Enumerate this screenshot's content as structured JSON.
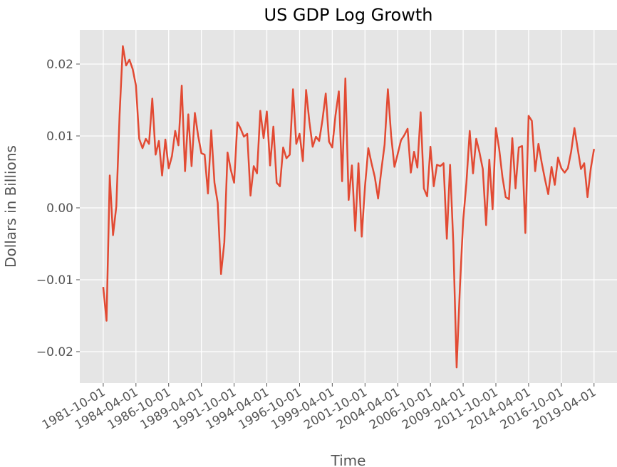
{
  "chart_data": {
    "type": "line",
    "title": "US GDP Log Growth",
    "xlabel": "Time",
    "ylabel": "Dollars in Billions",
    "x": [
      "1981-10-01",
      "1982-01-01",
      "1982-04-01",
      "1982-07-01",
      "1982-10-01",
      "1983-01-01",
      "1983-04-01",
      "1983-07-01",
      "1983-10-01",
      "1984-01-01",
      "1984-04-01",
      "1984-07-01",
      "1984-10-01",
      "1985-01-01",
      "1985-04-01",
      "1985-07-01",
      "1985-10-01",
      "1986-01-01",
      "1986-04-01",
      "1986-07-01",
      "1986-10-01",
      "1987-01-01",
      "1987-04-01",
      "1987-07-01",
      "1987-10-01",
      "1988-01-01",
      "1988-04-01",
      "1988-07-01",
      "1988-10-01",
      "1989-01-01",
      "1989-04-01",
      "1989-07-01",
      "1989-10-01",
      "1990-01-01",
      "1990-04-01",
      "1990-07-01",
      "1990-10-01",
      "1991-01-01",
      "1991-04-01",
      "1991-07-01",
      "1991-10-01",
      "1992-01-01",
      "1992-04-01",
      "1992-07-01",
      "1992-10-01",
      "1993-01-01",
      "1993-04-01",
      "1993-07-01",
      "1993-10-01",
      "1994-01-01",
      "1994-04-01",
      "1994-07-01",
      "1994-10-01",
      "1995-01-01",
      "1995-04-01",
      "1995-07-01",
      "1995-10-01",
      "1996-01-01",
      "1996-04-01",
      "1996-07-01",
      "1996-10-01",
      "1997-01-01",
      "1997-04-01",
      "1997-07-01",
      "1997-10-01",
      "1998-01-01",
      "1998-04-01",
      "1998-07-01",
      "1998-10-01",
      "1999-01-01",
      "1999-04-01",
      "1999-07-01",
      "1999-10-01",
      "2000-01-01",
      "2000-04-01",
      "2000-07-01",
      "2000-10-01",
      "2001-01-01",
      "2001-04-01",
      "2001-07-01",
      "2001-10-01",
      "2002-01-01",
      "2002-04-01",
      "2002-07-01",
      "2002-10-01",
      "2003-01-01",
      "2003-04-01",
      "2003-07-01",
      "2003-10-01",
      "2004-01-01",
      "2004-04-01",
      "2004-07-01",
      "2004-10-01",
      "2005-01-01",
      "2005-04-01",
      "2005-07-01",
      "2005-10-01",
      "2006-01-01",
      "2006-04-01",
      "2006-07-01",
      "2006-10-01",
      "2007-01-01",
      "2007-04-01",
      "2007-07-01",
      "2007-10-01",
      "2008-01-01",
      "2008-04-01",
      "2008-07-01",
      "2008-10-01",
      "2009-01-01",
      "2009-04-01",
      "2009-07-01",
      "2009-10-01",
      "2010-01-01",
      "2010-04-01",
      "2010-07-01",
      "2010-10-01",
      "2011-01-01",
      "2011-04-01",
      "2011-07-01",
      "2011-10-01",
      "2012-01-01",
      "2012-04-01",
      "2012-07-01",
      "2012-10-01",
      "2013-01-01",
      "2013-04-01",
      "2013-07-01",
      "2013-10-01",
      "2014-01-01",
      "2014-04-01",
      "2014-07-01",
      "2014-10-01",
      "2015-01-01",
      "2015-04-01",
      "2015-07-01",
      "2015-10-01",
      "2016-01-01",
      "2016-04-01",
      "2016-07-01",
      "2016-10-01",
      "2017-01-01",
      "2017-04-01",
      "2017-07-01",
      "2017-10-01",
      "2018-01-01",
      "2018-04-01",
      "2018-07-01",
      "2018-10-01",
      "2019-01-01",
      "2019-04-01"
    ],
    "series": [
      {
        "name": "GDP log growth",
        "color": "#E24A33",
        "values": [
          -0.011,
          -0.0157,
          0.0045,
          -0.0038,
          0.0002,
          0.013,
          0.0225,
          0.0198,
          0.0206,
          0.0193,
          0.017,
          0.0096,
          0.0083,
          0.0096,
          0.0089,
          0.0152,
          0.0074,
          0.0093,
          0.0045,
          0.0095,
          0.0055,
          0.0072,
          0.0107,
          0.0087,
          0.017,
          0.0051,
          0.013,
          0.0058,
          0.0132,
          0.01,
          0.0076,
          0.0074,
          0.002,
          0.0108,
          0.0035,
          0.0007,
          -0.0092,
          -0.0048,
          0.0077,
          0.0053,
          0.0035,
          0.0119,
          0.011,
          0.0099,
          0.0103,
          0.0017,
          0.0058,
          0.0048,
          0.0135,
          0.0097,
          0.0134,
          0.0059,
          0.0113,
          0.0035,
          0.003,
          0.0084,
          0.0069,
          0.0074,
          0.0165,
          0.0089,
          0.0103,
          0.0065,
          0.0164,
          0.012,
          0.0085,
          0.0099,
          0.0093,
          0.0122,
          0.0159,
          0.0092,
          0.0084,
          0.0129,
          0.0162,
          0.0037,
          0.018,
          0.0011,
          0.0059,
          -0.0032,
          0.0062,
          -0.004,
          0.003,
          0.0083,
          0.0062,
          0.0043,
          0.0013,
          0.0053,
          0.0088,
          0.0165,
          0.01,
          0.0057,
          0.0075,
          0.0094,
          0.0101,
          0.011,
          0.0049,
          0.0078,
          0.0056,
          0.0133,
          0.0027,
          0.0016,
          0.0085,
          0.003,
          0.006,
          0.0058,
          0.0062,
          -0.0043,
          0.006,
          -0.005,
          -0.0222,
          -0.011,
          -0.0018,
          0.0035,
          0.0107,
          0.0048,
          0.0096,
          0.0077,
          0.0054,
          -0.0024,
          0.0067,
          -0.0002,
          0.0111,
          0.0082,
          0.0043,
          0.0015,
          0.0012,
          0.0097,
          0.0027,
          0.0084,
          0.0086,
          -0.0035,
          0.0128,
          0.0121,
          0.0051,
          0.0089,
          0.0063,
          0.004,
          0.0019,
          0.0057,
          0.0032,
          0.007,
          0.0055,
          0.0049,
          0.0055,
          0.0078,
          0.0111,
          0.0082,
          0.0054,
          0.0062,
          0.0015,
          0.0055,
          0.0082
        ]
      }
    ],
    "xlim": [
      "1979-12-17",
      "2021-01-01"
    ],
    "xticks": [
      "1981-10-01",
      "1984-04-01",
      "1986-10-01",
      "1989-04-01",
      "1991-10-01",
      "1994-04-01",
      "1996-10-01",
      "1999-04-01",
      "2001-10-01",
      "2004-04-01",
      "2006-10-01",
      "2009-04-01",
      "2011-10-01",
      "2014-04-01",
      "2016-10-01",
      "2019-04-01"
    ],
    "ylim": [
      -0.02436,
      0.02475
    ],
    "yticks": [
      {
        "value": -0.02,
        "label": "−0.02"
      },
      {
        "value": -0.01,
        "label": "−0.01"
      },
      {
        "value": 0,
        "label": "0.00"
      },
      0.01,
      0.02
    ],
    "grid": true
  }
}
